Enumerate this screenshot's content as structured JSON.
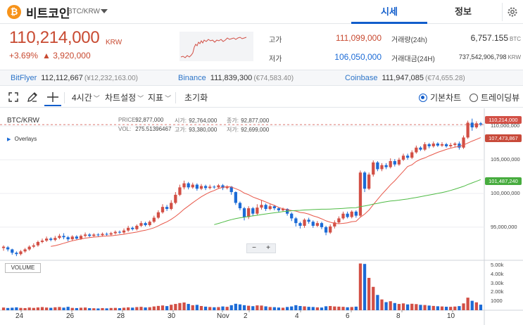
{
  "header": {
    "logo_glyph": "₿",
    "coin_name": "비트코인",
    "pair": "BTC/KRW",
    "tabs": [
      {
        "label": "시세",
        "active": true
      },
      {
        "label": "정보",
        "active": false
      }
    ]
  },
  "summary": {
    "price": "110,214,000",
    "price_unit": "KRW",
    "change_pct": "+3.69%",
    "change_amt": "▲ 3,920,000",
    "high_label": "고가",
    "high_value": "111,099,000",
    "low_label": "저가",
    "low_value": "106,050,000",
    "volume_label": "거래량(24h)",
    "volume_value": "6,757.155",
    "volume_unit": "BTC",
    "turnover_label": "거래대금(24H)",
    "turnover_value": "737,542,906,798",
    "turnover_unit": "KRW"
  },
  "exchanges": [
    {
      "name": "BitFlyer",
      "price": "112,112,667",
      "extra": "(¥12,232,163.00)"
    },
    {
      "name": "Binance",
      "price": "111,839,300",
      "extra": "(€74,583.40)"
    },
    {
      "name": "Coinbase",
      "price": "111,947,085",
      "extra": "(€74,655.28)"
    }
  ],
  "toolbar": {
    "interval": "4시간",
    "chart_settings": "차트설정",
    "indicators": "지표",
    "reset": "초기화",
    "basic_chart": "기본차트",
    "tradingview": "트레이딩뷰"
  },
  "chart": {
    "symbol": "BTC/KRW",
    "overlays": "Overlays",
    "ohlc": {
      "price_label": "PRICE:",
      "price": "92,877,000",
      "open_label": "시가:",
      "open": "92,764,000",
      "close_label": "종가:",
      "close": "92,877,000",
      "vol_label": "VOL:",
      "vol": "275.51396467",
      "high_label": "고가:",
      "high": "93,380,000",
      "low_label": "저가:",
      "low": "92,699,000"
    },
    "zoom_minus": "−",
    "zoom_plus": "+",
    "volume_label": "VOLUME",
    "badges": {
      "last": "110,214,000",
      "ma_short": "107,473,867",
      "ma_long": "101,487,240"
    },
    "colors": {
      "up": "#d24f45",
      "down": "#1c6bd6",
      "ma_short": "#e8584a",
      "ma_long": "#4fbb45"
    }
  },
  "chart_data": {
    "type": "candlestick",
    "x_ticks": [
      "24",
      "26",
      "28",
      "30",
      "Nov",
      "2",
      "4",
      "6",
      "8",
      "10"
    ],
    "y_ticks": [
      "110,000,000",
      "105,000,000",
      "100,000,000",
      "95,000,000"
    ],
    "y_range": [
      90500000,
      112000000
    ],
    "volume_ticks": [
      "5.00k",
      "4.00k",
      "3.00k",
      "2.00k",
      "1000"
    ],
    "volume_range": [
      0,
      5400
    ],
    "grid": true,
    "candles": [
      [
        91900000,
        92100000,
        91500000,
        92300000,
        300
      ],
      [
        92000000,
        91700000,
        91400000,
        92200000,
        250
      ],
      [
        91700000,
        91200000,
        90900000,
        91800000,
        280
      ],
      [
        91200000,
        91000000,
        90700000,
        91400000,
        320
      ],
      [
        91000000,
        91400000,
        90800000,
        91600000,
        260
      ],
      [
        91400000,
        91700000,
        91200000,
        91900000,
        240
      ],
      [
        91700000,
        92100000,
        91500000,
        92300000,
        300
      ],
      [
        92100000,
        92300000,
        91900000,
        92600000,
        260
      ],
      [
        92300000,
        92800000,
        92100000,
        93000000,
        310
      ],
      [
        92800000,
        93000000,
        92600000,
        93300000,
        350
      ],
      [
        93000000,
        93300000,
        92800000,
        93600000,
        300
      ],
      [
        93300000,
        93100000,
        92900000,
        93500000,
        270
      ],
      [
        93100000,
        93400000,
        92900000,
        93700000,
        330
      ],
      [
        93400000,
        93700000,
        93200000,
        94000000,
        360
      ],
      [
        93700000,
        93500000,
        93200000,
        94100000,
        290
      ],
      [
        93500000,
        93200000,
        92900000,
        93700000,
        380
      ],
      [
        93200000,
        93600000,
        93000000,
        93800000,
        260
      ],
      [
        93600000,
        93300000,
        93100000,
        93800000,
        240
      ],
      [
        93300000,
        93700000,
        93100000,
        93900000,
        280
      ],
      [
        93700000,
        93900000,
        93500000,
        94200000,
        300
      ],
      [
        93900000,
        93700000,
        93500000,
        94100000,
        230
      ],
      [
        93700000,
        93900000,
        93500000,
        94100000,
        220
      ],
      [
        93900000,
        93800000,
        93600000,
        94100000,
        200
      ],
      [
        93800000,
        94000000,
        93600000,
        94200000,
        240
      ],
      [
        94000000,
        93900000,
        93700000,
        94200000,
        210
      ],
      [
        93900000,
        94100000,
        93700000,
        94300000,
        250
      ],
      [
        94100000,
        94300000,
        93900000,
        94500000,
        260
      ],
      [
        94300000,
        94200000,
        94000000,
        94500000,
        230
      ],
      [
        94200000,
        94500000,
        94000000,
        94800000,
        280
      ],
      [
        94500000,
        94900000,
        94300000,
        95200000,
        320
      ],
      [
        94900000,
        94700000,
        94500000,
        95100000,
        290
      ],
      [
        94700000,
        95200000,
        94500000,
        95400000,
        350
      ],
      [
        95200000,
        95600000,
        95000000,
        95900000,
        380
      ],
      [
        95600000,
        95300000,
        95100000,
        95800000,
        310
      ],
      [
        95300000,
        95800000,
        95100000,
        96000000,
        340
      ],
      [
        95800000,
        96400000,
        95600000,
        96700000,
        420
      ],
      [
        96400000,
        97200000,
        96200000,
        97500000,
        480
      ],
      [
        97200000,
        98000000,
        97000000,
        98400000,
        530
      ],
      [
        98000000,
        97700000,
        97400000,
        98300000,
        460
      ],
      [
        97700000,
        98600000,
        97500000,
        99000000,
        610
      ],
      [
        98600000,
        99800000,
        98400000,
        100200000,
        700
      ],
      [
        99800000,
        100900000,
        99600000,
        101300000,
        800
      ],
      [
        100900000,
        101500000,
        100600000,
        101900000,
        860
      ],
      [
        101500000,
        100900000,
        100600000,
        101700000,
        700
      ],
      [
        100900000,
        101300000,
        100700000,
        101600000,
        560
      ],
      [
        101300000,
        100700000,
        100400000,
        101500000,
        600
      ],
      [
        100700000,
        101100000,
        100500000,
        101400000,
        470
      ],
      [
        101100000,
        100800000,
        100500000,
        101300000,
        400
      ],
      [
        100800000,
        101000000,
        100600000,
        101300000,
        360
      ],
      [
        101000000,
        100900000,
        100700000,
        101200000,
        330
      ],
      [
        100900000,
        101200000,
        100700000,
        101400000,
        350
      ],
      [
        101200000,
        100800000,
        100500000,
        101400000,
        420
      ],
      [
        100800000,
        101000000,
        100600000,
        101200000,
        380
      ],
      [
        101000000,
        100200000,
        99800000,
        101100000,
        560
      ],
      [
        100200000,
        98600000,
        98300000,
        100300000,
        720
      ],
      [
        98600000,
        97800000,
        97500000,
        98800000,
        650
      ],
      [
        97800000,
        96500000,
        96000000,
        98000000,
        560
      ],
      [
        96500000,
        97800000,
        96200000,
        98100000,
        500
      ],
      [
        97800000,
        97000000,
        96700000,
        98000000,
        450
      ],
      [
        97000000,
        97900000,
        96800000,
        98400000,
        540
      ],
      [
        97900000,
        98300000,
        97600000,
        99000000,
        520
      ],
      [
        98300000,
        97700000,
        97400000,
        98500000,
        430
      ],
      [
        97700000,
        98100000,
        97500000,
        98400000,
        360
      ],
      [
        98100000,
        97800000,
        97500000,
        98300000,
        340
      ],
      [
        97800000,
        97500000,
        97200000,
        98000000,
        300
      ],
      [
        97500000,
        97700000,
        97300000,
        97900000,
        280
      ],
      [
        97700000,
        97000000,
        96700000,
        97800000,
        360
      ],
      [
        97000000,
        96300000,
        95900000,
        97200000,
        420
      ],
      [
        96300000,
        95600000,
        95100000,
        96500000,
        560
      ],
      [
        95600000,
        95200000,
        94800000,
        95800000,
        470
      ],
      [
        95200000,
        96100000,
        94900000,
        96300000,
        430
      ],
      [
        96100000,
        95800000,
        95500000,
        96400000,
        380
      ],
      [
        95800000,
        95200000,
        94900000,
        96000000,
        360
      ],
      [
        95200000,
        95600000,
        95000000,
        95900000,
        320
      ],
      [
        95600000,
        95000000,
        94700000,
        95800000,
        300
      ],
      [
        95000000,
        94200000,
        93800000,
        95200000,
        440
      ],
      [
        94200000,
        95100000,
        94000000,
        95400000,
        470
      ],
      [
        95100000,
        95700000,
        94800000,
        96000000,
        420
      ],
      [
        95700000,
        96300000,
        95500000,
        96600000,
        400
      ],
      [
        96300000,
        97000000,
        96100000,
        97300000,
        380
      ],
      [
        97000000,
        96500000,
        96300000,
        97300000,
        330
      ],
      [
        96500000,
        97300000,
        96300000,
        97500000,
        360
      ],
      [
        97300000,
        96700000,
        96400000,
        97500000,
        400
      ],
      [
        96700000,
        103100000,
        96500000,
        103400000,
        5200
      ],
      [
        103100000,
        100700000,
        100200000,
        103300000,
        5150
      ],
      [
        100700000,
        102800000,
        100500000,
        103100000,
        3600
      ],
      [
        102800000,
        104600000,
        102500000,
        104900000,
        2600
      ],
      [
        104600000,
        103600000,
        103300000,
        104800000,
        1700
      ],
      [
        103600000,
        104200000,
        103300000,
        104500000,
        1200
      ],
      [
        104200000,
        103900000,
        103600000,
        104500000,
        900
      ],
      [
        103900000,
        104800000,
        103700000,
        105200000,
        1000
      ],
      [
        104800000,
        104300000,
        104000000,
        105100000,
        800
      ],
      [
        104300000,
        105000000,
        104100000,
        105300000,
        700
      ],
      [
        105000000,
        105600000,
        104800000,
        105900000,
        760
      ],
      [
        105600000,
        105300000,
        105000000,
        105900000,
        650
      ],
      [
        105300000,
        106100000,
        105100000,
        106400000,
        720
      ],
      [
        106100000,
        106800000,
        105900000,
        107100000,
        680
      ],
      [
        106800000,
        106500000,
        106300000,
        107000000,
        600
      ],
      [
        106500000,
        107300000,
        106300000,
        107600000,
        580
      ],
      [
        107300000,
        107000000,
        106700000,
        107500000,
        520
      ],
      [
        107000000,
        107400000,
        106800000,
        107700000,
        480
      ],
      [
        107400000,
        107100000,
        106900000,
        107600000,
        440
      ],
      [
        107100000,
        107300000,
        106900000,
        107600000,
        420
      ],
      [
        107300000,
        107000000,
        106800000,
        107500000,
        390
      ],
      [
        107000000,
        107200000,
        106800000,
        107500000,
        380
      ],
      [
        107200000,
        107400000,
        106900000,
        107600000,
        410
      ],
      [
        107400000,
        106800000,
        106500000,
        107700000,
        460
      ],
      [
        106800000,
        108300000,
        106600000,
        108600000,
        760
      ],
      [
        108300000,
        110500000,
        108100000,
        110800000,
        1400
      ],
      [
        110500000,
        109800000,
        109300000,
        111099000,
        1050
      ],
      [
        109800000,
        110400000,
        109600000,
        110700000,
        880
      ],
      [
        110400000,
        110214000,
        110000000,
        110600000,
        620
      ]
    ]
  }
}
